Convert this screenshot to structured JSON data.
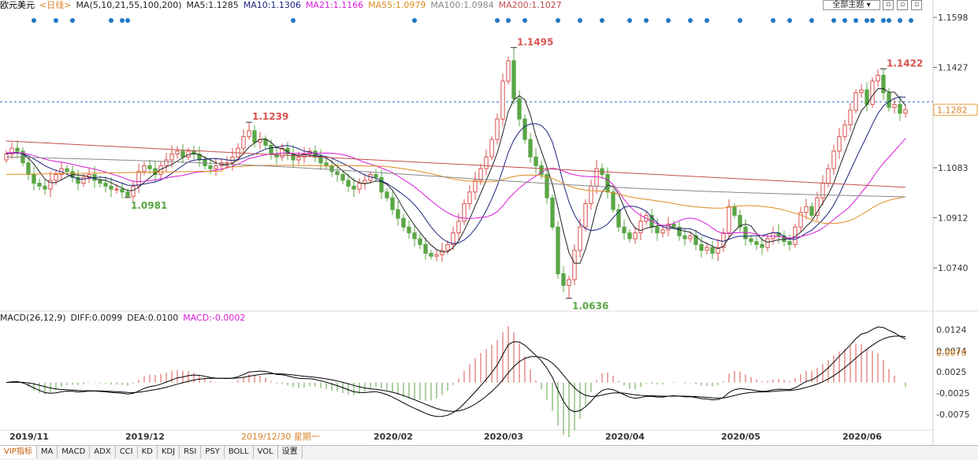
{
  "header": {
    "symbol": "欧元美元",
    "period": "<日线>",
    "ma_label": "MA(5,10,21,55,100,200)",
    "ma_values": [
      {
        "text": "MA5:1.1285",
        "color": "#222222"
      },
      {
        "text": "MA10:1.1306",
        "color": "#1a237e"
      },
      {
        "text": "MA21:1.1166",
        "color": "#d81bd8"
      },
      {
        "text": "MA55:1.0979",
        "color": "#e08a1e"
      },
      {
        "text": "MA100:1.0984",
        "color": "#888888"
      },
      {
        "text": "MA200:1.1027",
        "color": "#c0504d"
      }
    ],
    "theme_label": "全部主题",
    "window_buttons": [
      "□",
      "□",
      "□"
    ]
  },
  "macd_header": {
    "title": "MACD(26,12,9)",
    "diff": "DIFF:0.0099",
    "dea": "DEA:0.0100",
    "macd": "MACD:-0.0002"
  },
  "colors": {
    "up": "#d9534f",
    "down": "#5aa646",
    "annot_high": "#d9534f",
    "annot_low": "#5aa646",
    "dash": "#2b6fcc",
    "dot": "#1f77c4"
  },
  "tabs": [
    "VIP指标",
    "MA",
    "MACD",
    "ADX",
    "CCI",
    "KD",
    "KDJ",
    "RSI",
    "PSY",
    "BOLL",
    "VOL",
    "设置"
  ],
  "chart_data": {
    "type": "candlestick",
    "price_axis_ticks": [
      "1.1598",
      "1.1427",
      "1.1083",
      "1.0912",
      "1.0740"
    ],
    "price_range": [
      1.06,
      1.162
    ],
    "current_price": "1.1282",
    "macd_axis_ticks": [
      "0.0124",
      "0.0074",
      "0.0070",
      "0.0025",
      "-0.0025",
      "-0.0075"
    ],
    "macd_range": [
      -0.011,
      0.014
    ],
    "date_labels": [
      {
        "text": "2019/11",
        "idx": 2
      },
      {
        "text": "2019/12",
        "idx": 23
      },
      {
        "text": "2019/12/30 星期一",
        "idx": 44,
        "highlight": true
      },
      {
        "text": "2020/02",
        "idx": 68
      },
      {
        "text": "2020/03",
        "idx": 88
      },
      {
        "text": "2020/04",
        "idx": 110
      },
      {
        "text": "2020/05",
        "idx": 131
      },
      {
        "text": "2020/06",
        "idx": 153
      }
    ],
    "annotations": [
      {
        "text": "1.1239",
        "idx": 44,
        "price": 1.1239,
        "kind": "high"
      },
      {
        "text": "1.0981",
        "idx": 22,
        "price": 1.0981,
        "kind": "low"
      },
      {
        "text": "1.1495",
        "idx": 92,
        "price": 1.1495,
        "kind": "high"
      },
      {
        "text": "1.0636",
        "idx": 102,
        "price": 1.0636,
        "kind": "low"
      },
      {
        "text": "1.1422",
        "idx": 159,
        "price": 1.1422,
        "kind": "high"
      }
    ],
    "closes": [
      1.113,
      1.115,
      1.114,
      1.11,
      1.106,
      1.103,
      1.102,
      1.101,
      1.104,
      1.106,
      1.108,
      1.107,
      1.105,
      1.103,
      1.105,
      1.106,
      1.104,
      1.103,
      1.102,
      1.101,
      1.101,
      1.1,
      1.0985,
      1.102,
      1.107,
      1.109,
      1.108,
      1.106,
      1.109,
      1.111,
      1.113,
      1.114,
      1.112,
      1.114,
      1.113,
      1.111,
      1.109,
      1.108,
      1.109,
      1.11,
      1.11,
      1.112,
      1.115,
      1.119,
      1.121,
      1.117,
      1.118,
      1.116,
      1.113,
      1.112,
      1.115,
      1.113,
      1.111,
      1.112,
      1.113,
      1.114,
      1.112,
      1.11,
      1.109,
      1.107,
      1.106,
      1.104,
      1.102,
      1.101,
      1.103,
      1.104,
      1.106,
      1.105,
      1.1,
      1.098,
      1.094,
      1.091,
      1.088,
      1.086,
      1.084,
      1.082,
      1.079,
      1.078,
      1.0785,
      1.08,
      1.082,
      1.086,
      1.09,
      1.096,
      1.1,
      1.104,
      1.108,
      1.112,
      1.118,
      1.125,
      1.138,
      1.145,
      1.132,
      1.125,
      1.118,
      1.112,
      1.109,
      1.106,
      1.098,
      1.088,
      1.072,
      1.068,
      1.07,
      1.08,
      1.088,
      1.096,
      1.102,
      1.108,
      1.106,
      1.1,
      1.094,
      1.088,
      1.086,
      1.084,
      1.086,
      1.09,
      1.092,
      1.088,
      1.086,
      1.087,
      1.089,
      1.088,
      1.085,
      1.084,
      1.085,
      1.082,
      1.08,
      1.081,
      1.079,
      1.081,
      1.086,
      1.095,
      1.092,
      1.088,
      1.084,
      1.083,
      1.082,
      1.081,
      1.084,
      1.086,
      1.085,
      1.083,
      1.082,
      1.088,
      1.093,
      1.095,
      1.092,
      1.098,
      1.103,
      1.108,
      1.114,
      1.119,
      1.123,
      1.128,
      1.134,
      1.135,
      1.13,
      1.138,
      1.14,
      1.134,
      1.129,
      1.13,
      1.127,
      1.1282
    ],
    "series": [
      {
        "name": "MA5",
        "color": "#222222",
        "period": 5
      },
      {
        "name": "MA10",
        "color": "#1a237e",
        "period": 10
      },
      {
        "name": "MA21",
        "color": "#d81bd8",
        "period": 21
      },
      {
        "name": "MA55",
        "color": "#e08a1e",
        "period": 55
      },
      {
        "name": "MA100",
        "color": "#888888",
        "period": 100
      },
      {
        "name": "MA200",
        "color": "#c0504d",
        "period": 200
      }
    ],
    "macd_series": [
      {
        "name": "DIFF",
        "color": "#000000"
      },
      {
        "name": "DEA",
        "color": "#000000"
      }
    ]
  }
}
